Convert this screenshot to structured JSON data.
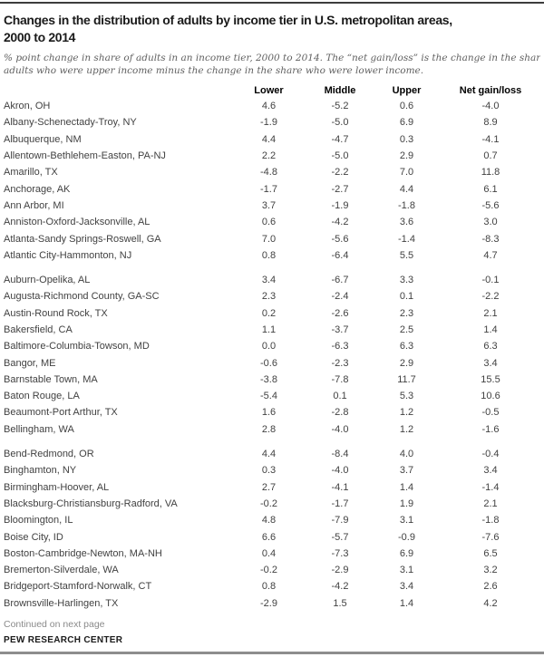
{
  "header": {
    "title_line1": "Changes in the distribution of adults by income tier in U.S. metropolitan areas,",
    "title_line2": "2000 to 2014",
    "subtitle_line1": "% point change in share of adults in an income tier, 2000 to 2014. The “net gain/loss” is the change in the share of",
    "subtitle_line2": "adults who were upper income minus the change in the share who were lower income."
  },
  "table": {
    "columns": [
      "Lower",
      "Middle",
      "Upper",
      "Net gain/loss"
    ],
    "groups": [
      [
        {
          "name": "Akron, OH",
          "values": [
            "4.6",
            "-5.2",
            "0.6",
            "-4.0"
          ]
        },
        {
          "name": "Albany-Schenectady-Troy, NY",
          "values": [
            "-1.9",
            "-5.0",
            "6.9",
            "8.9"
          ]
        },
        {
          "name": "Albuquerque, NM",
          "values": [
            "4.4",
            "-4.7",
            "0.3",
            "-4.1"
          ]
        },
        {
          "name": "Allentown-Bethlehem-Easton, PA-NJ",
          "values": [
            "2.2",
            "-5.0",
            "2.9",
            "0.7"
          ]
        },
        {
          "name": "Amarillo, TX",
          "values": [
            "-4.8",
            "-2.2",
            "7.0",
            "11.8"
          ]
        },
        {
          "name": "Anchorage, AK",
          "values": [
            "-1.7",
            "-2.7",
            "4.4",
            "6.1"
          ]
        },
        {
          "name": "Ann Arbor, MI",
          "values": [
            "3.7",
            "-1.9",
            "-1.8",
            "-5.6"
          ]
        },
        {
          "name": "Anniston-Oxford-Jacksonville, AL",
          "values": [
            "0.6",
            "-4.2",
            "3.6",
            "3.0"
          ]
        },
        {
          "name": "Atlanta-Sandy Springs-Roswell, GA",
          "values": [
            "7.0",
            "-5.6",
            "-1.4",
            "-8.3"
          ]
        },
        {
          "name": "Atlantic City-Hammonton, NJ",
          "values": [
            "0.8",
            "-6.4",
            "5.5",
            "4.7"
          ]
        }
      ],
      [
        {
          "name": "Auburn-Opelika, AL",
          "values": [
            "3.4",
            "-6.7",
            "3.3",
            "-0.1"
          ]
        },
        {
          "name": "Augusta-Richmond County, GA-SC",
          "values": [
            "2.3",
            "-2.4",
            "0.1",
            "-2.2"
          ]
        },
        {
          "name": "Austin-Round Rock, TX",
          "values": [
            "0.2",
            "-2.6",
            "2.3",
            "2.1"
          ]
        },
        {
          "name": "Bakersfield, CA",
          "values": [
            "1.1",
            "-3.7",
            "2.5",
            "1.4"
          ]
        },
        {
          "name": "Baltimore-Columbia-Towson, MD",
          "values": [
            "0.0",
            "-6.3",
            "6.3",
            "6.3"
          ]
        },
        {
          "name": "Bangor, ME",
          "values": [
            "-0.6",
            "-2.3",
            "2.9",
            "3.4"
          ]
        },
        {
          "name": "Barnstable Town, MA",
          "values": [
            "-3.8",
            "-7.8",
            "11.7",
            "15.5"
          ]
        },
        {
          "name": "Baton Rouge, LA",
          "values": [
            "-5.4",
            "0.1",
            "5.3",
            "10.6"
          ]
        },
        {
          "name": "Beaumont-Port Arthur, TX",
          "values": [
            "1.6",
            "-2.8",
            "1.2",
            "-0.5"
          ]
        },
        {
          "name": "Bellingham, WA",
          "values": [
            "2.8",
            "-4.0",
            "1.2",
            "-1.6"
          ]
        }
      ],
      [
        {
          "name": "Bend-Redmond, OR",
          "values": [
            "4.4",
            "-8.4",
            "4.0",
            "-0.4"
          ]
        },
        {
          "name": "Binghamton, NY",
          "values": [
            "0.3",
            "-4.0",
            "3.7",
            "3.4"
          ]
        },
        {
          "name": "Birmingham-Hoover, AL",
          "values": [
            "2.7",
            "-4.1",
            "1.4",
            "-1.4"
          ]
        },
        {
          "name": "Blacksburg-Christiansburg-Radford, VA",
          "values": [
            "-0.2",
            "-1.7",
            "1.9",
            "2.1"
          ]
        },
        {
          "name": "Bloomington, IL",
          "values": [
            "4.8",
            "-7.9",
            "3.1",
            "-1.8"
          ]
        },
        {
          "name": "Boise City, ID",
          "values": [
            "6.6",
            "-5.7",
            "-0.9",
            "-7.6"
          ]
        },
        {
          "name": "Boston-Cambridge-Newton, MA-NH",
          "values": [
            "0.4",
            "-7.3",
            "6.9",
            "6.5"
          ]
        },
        {
          "name": "Bremerton-Silverdale, WA",
          "values": [
            "-0.2",
            "-2.9",
            "3.1",
            "3.2"
          ]
        },
        {
          "name": "Bridgeport-Stamford-Norwalk, CT",
          "values": [
            "0.8",
            "-4.2",
            "3.4",
            "2.6"
          ]
        },
        {
          "name": "Brownsville-Harlingen, TX",
          "values": [
            "-2.9",
            "1.5",
            "1.4",
            "4.2"
          ]
        }
      ]
    ]
  },
  "footer": {
    "continued": "Continued on next page",
    "source": "PEW RESEARCH CENTER"
  },
  "colors": {
    "rule_top": "#3c3c3c",
    "rule_bottom": "#8d8d8d",
    "title_text": "#1a1a1a",
    "body_text": "#414141",
    "subtitle_text": "#616161"
  }
}
